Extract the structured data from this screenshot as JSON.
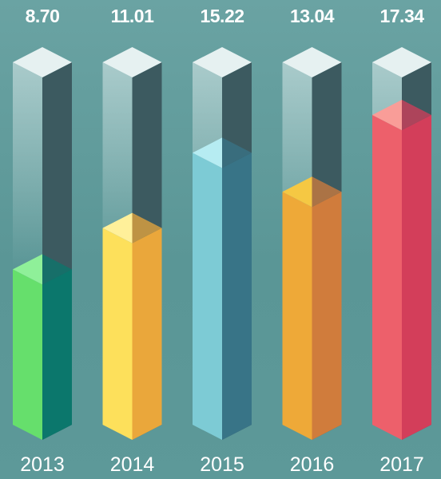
{
  "chart_data": {
    "type": "bar",
    "title": "",
    "xlabel": "",
    "ylabel": "",
    "categories": [
      "2013",
      "2014",
      "2015",
      "2016",
      "2017"
    ],
    "values": [
      8.7,
      11.01,
      15.22,
      13.04,
      17.34
    ],
    "value_labels": [
      "8.70",
      "11.01",
      "15.22",
      "13.04",
      "17.34"
    ],
    "ylim": [
      0,
      17.34
    ],
    "grid": false,
    "legend": "none",
    "style": "3d-isometric-columns",
    "colors": [
      {
        "front": "#66df6c",
        "side": "#0b776c",
        "top": "#8ff099"
      },
      {
        "front": "#fde05b",
        "side": "#eaa73b",
        "top": "#fff09a"
      },
      {
        "front": "#7dcbd5",
        "side": "#387487",
        "top": "#b6ecf2"
      },
      {
        "front": "#eea938",
        "side": "#d07c3c",
        "top": "#f5c843"
      },
      {
        "front": "#ed606b",
        "side": "#d33e5a",
        "top": "#f99d98"
      }
    ],
    "track_colors": {
      "front": "#e0eeee",
      "side": "#3c5a60",
      "top": "#e6f1f1"
    }
  }
}
